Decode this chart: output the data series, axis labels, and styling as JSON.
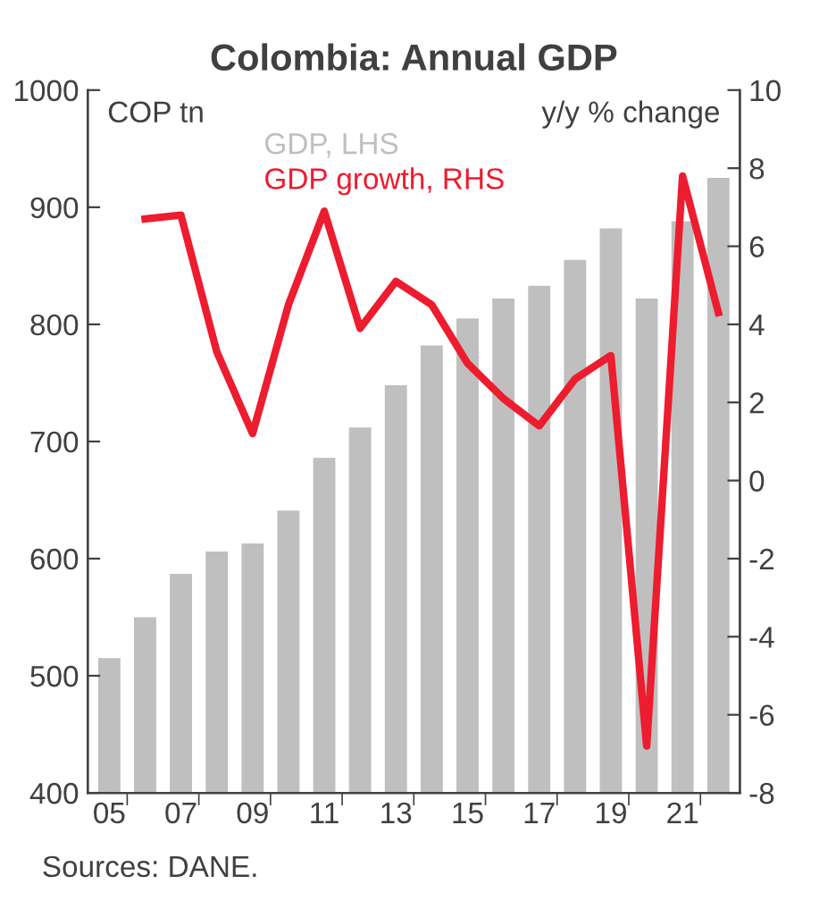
{
  "chart_data": {
    "type": "bar",
    "title": "Colombia: Annual GDP",
    "ylabel": "COP tn",
    "y2label": "y/y % change",
    "categories": [
      "05",
      null,
      "07",
      null,
      "09",
      null,
      "11",
      null,
      "13",
      null,
      "15",
      null,
      "17",
      null,
      "19",
      null,
      "21",
      null
    ],
    "series": [
      {
        "name": "GDP, LHS",
        "color": "#bfbfbf",
        "values": [
          515,
          550,
          587,
          606,
          613,
          641,
          686,
          712,
          748,
          782,
          805,
          822,
          833,
          855,
          882,
          822,
          888,
          925
        ]
      },
      {
        "name": "GDP growth, RHS",
        "color": "#ed1c2e",
        "type": "line",
        "axis": "y2",
        "values": [
          null,
          6.7,
          6.8,
          3.3,
          1.2,
          4.5,
          6.9,
          3.9,
          5.1,
          4.5,
          3.0,
          2.1,
          1.4,
          2.6,
          3.2,
          -6.8,
          7.8,
          4.3
        ]
      }
    ],
    "ylim": [
      400,
      1000
    ],
    "yticks": [
      400,
      500,
      600,
      700,
      800,
      900,
      1000
    ],
    "y2lim": [
      -8,
      10
    ],
    "y2ticks": [
      -8,
      -6,
      -4,
      -2,
      0,
      2,
      4,
      6,
      8,
      10
    ],
    "legend": "top",
    "grid": false,
    "marker": "none",
    "line_style": "solid",
    "annotations": [
      "Sources: DANE."
    ]
  }
}
